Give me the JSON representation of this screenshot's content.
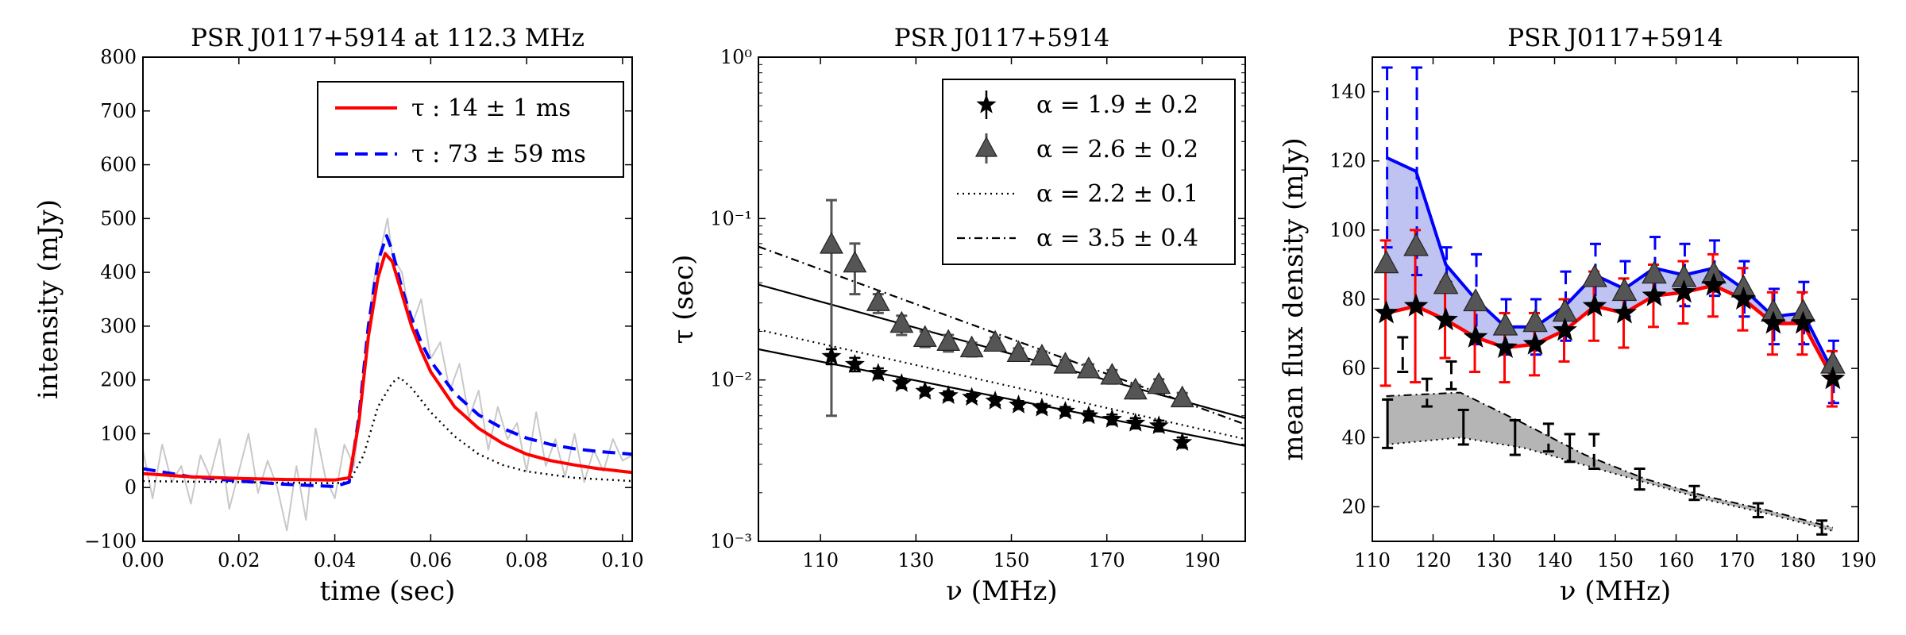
{
  "chart_data": [
    {
      "type": "line",
      "title": "PSR J0117+5914 at 112.3 MHz",
      "xlabel": "time (sec)",
      "ylabel": "intensity (mJy)",
      "xlim": [
        0.0,
        0.102
      ],
      "ylim": [
        -100,
        800
      ],
      "xticks": [
        "0.00",
        "0.02",
        "0.04",
        "0.06",
        "0.08",
        "0.10"
      ],
      "xtick_values": [
        0.0,
        0.02,
        0.04,
        0.06,
        0.08,
        0.1
      ],
      "yticks": [
        "−100",
        "0",
        "100",
        "200",
        "300",
        "400",
        "500",
        "600",
        "700",
        "800"
      ],
      "ytick_values": [
        -100,
        0,
        100,
        200,
        300,
        400,
        500,
        600,
        700,
        800
      ],
      "legend_position": "top-right",
      "legend": [
        {
          "label": "τ : 14 ± 1 ms",
          "color": "#ff0000",
          "style": "solid"
        },
        {
          "label": "τ : 73 ± 59 ms",
          "color": "#0000ff",
          "style": "dashed"
        }
      ],
      "series": [
        {
          "name": "fit tau 14 ms",
          "color": "#ff0000",
          "style": "solid",
          "x": [
            0.0,
            0.01,
            0.02,
            0.03,
            0.04,
            0.043,
            0.045,
            0.047,
            0.049,
            0.0505,
            0.052,
            0.054,
            0.056,
            0.058,
            0.06,
            0.065,
            0.07,
            0.075,
            0.08,
            0.085,
            0.09,
            0.095,
            0.102
          ],
          "y": [
            26,
            20,
            17,
            15,
            14,
            18,
            120,
            280,
            390,
            435,
            420,
            360,
            300,
            255,
            215,
            150,
            110,
            82,
            62,
            50,
            42,
            35,
            28
          ]
        },
        {
          "name": "fit tau 73 ms",
          "color": "#0000ff",
          "style": "dashed",
          "x": [
            0.0,
            0.01,
            0.02,
            0.03,
            0.04,
            0.043,
            0.045,
            0.047,
            0.049,
            0.0508,
            0.052,
            0.054,
            0.056,
            0.058,
            0.06,
            0.065,
            0.07,
            0.075,
            0.08,
            0.085,
            0.09,
            0.095,
            0.102
          ],
          "y": [
            35,
            20,
            12,
            6,
            2,
            10,
            130,
            300,
            420,
            468,
            440,
            370,
            315,
            270,
            235,
            175,
            135,
            110,
            92,
            80,
            72,
            67,
            62
          ]
        },
        {
          "name": "model component",
          "color": "#000000",
          "style": "dotted",
          "x": [
            0.0,
            0.01,
            0.02,
            0.03,
            0.04,
            0.043,
            0.046,
            0.049,
            0.052,
            0.0535,
            0.056,
            0.06,
            0.065,
            0.07,
            0.075,
            0.08,
            0.09,
            0.102
          ],
          "y": [
            12,
            11,
            10,
            9,
            8,
            10,
            60,
            150,
            195,
            205,
            185,
            140,
            95,
            62,
            42,
            30,
            18,
            12
          ]
        },
        {
          "name": "observed profile",
          "color": "#c8c8c8",
          "style": "solid",
          "x": [
            0.0,
            0.002,
            0.004,
            0.006,
            0.008,
            0.01,
            0.012,
            0.014,
            0.016,
            0.018,
            0.02,
            0.022,
            0.024,
            0.026,
            0.028,
            0.03,
            0.032,
            0.034,
            0.036,
            0.038,
            0.04,
            0.042,
            0.044,
            0.046,
            0.048,
            0.05,
            0.051,
            0.052,
            0.054,
            0.056,
            0.058,
            0.06,
            0.062,
            0.064,
            0.066,
            0.068,
            0.07,
            0.072,
            0.074,
            0.076,
            0.078,
            0.08,
            0.082,
            0.084,
            0.086,
            0.088,
            0.09,
            0.092,
            0.094,
            0.096,
            0.098,
            0.1,
            0.102
          ],
          "y": [
            70,
            -20,
            80,
            10,
            40,
            -30,
            60,
            20,
            90,
            -40,
            30,
            100,
            -10,
            50,
            0,
            -80,
            40,
            -60,
            110,
            20,
            -20,
            80,
            40,
            200,
            380,
            460,
            500,
            430,
            400,
            300,
            350,
            240,
            270,
            180,
            230,
            130,
            180,
            70,
            150,
            90,
            120,
            30,
            140,
            40,
            90,
            20,
            100,
            10,
            70,
            30,
            90,
            50,
            60
          ]
        }
      ]
    },
    {
      "type": "scatter",
      "title": "PSR J0117+5914",
      "xlabel": "ν (MHz)",
      "ylabel": "τ (sec)",
      "yscale": "log",
      "xlim": [
        97,
        199
      ],
      "ylim": [
        0.001,
        1
      ],
      "xticks": [
        "110",
        "130",
        "150",
        "170",
        "190"
      ],
      "xtick_values": [
        110,
        130,
        150,
        170,
        190
      ],
      "yticks": [
        "10⁻³",
        "10⁻²",
        "10⁻¹",
        "10⁰"
      ],
      "ytick_values": [
        0.001,
        0.01,
        0.1,
        1
      ],
      "legend_position": "top-right",
      "legend": [
        {
          "label": "α = 1.9 ± 0.2",
          "marker": "star"
        },
        {
          "label": "α = 2.6 ± 0.2",
          "marker": "triangle"
        },
        {
          "label": "α = 2.2 ± 0.1",
          "style": "dotted"
        },
        {
          "label": "α = 3.5 ± 0.4",
          "style": "dashdot"
        }
      ],
      "series": [
        {
          "name": "stars (alpha 1.9)",
          "marker": "star",
          "color": "#000000",
          "x": [
            112.3,
            117.2,
            122.1,
            127.0,
            131.9,
            136.8,
            141.7,
            146.6,
            151.5,
            156.4,
            161.3,
            166.2,
            171.1,
            176.0,
            180.9,
            185.8
          ],
          "y": [
            0.014,
            0.0125,
            0.011,
            0.0095,
            0.0085,
            0.008,
            0.0078,
            0.0074,
            0.007,
            0.0067,
            0.0064,
            0.006,
            0.0057,
            0.0054,
            0.0052,
            0.0041
          ],
          "yerr": [
            0.0015,
            0.0012,
            0.0008,
            0.0006,
            0.0005,
            0.0005,
            0.0004,
            0.0004,
            0.0004,
            0.0004,
            0.0004,
            0.0004,
            0.0004,
            0.0004,
            0.0004,
            0.0003
          ]
        },
        {
          "name": "triangles (alpha 2.6)",
          "marker": "triangle",
          "color": "#555555",
          "x": [
            112.3,
            117.2,
            122.1,
            127.0,
            131.9,
            136.8,
            141.7,
            146.6,
            151.5,
            156.4,
            161.3,
            166.2,
            171.1,
            176.0,
            180.9,
            185.8
          ],
          "y": [
            0.068,
            0.052,
            0.03,
            0.022,
            0.018,
            0.017,
            0.0155,
            0.0168,
            0.0145,
            0.0138,
            0.0123,
            0.0115,
            0.0105,
            0.0085,
            0.0092,
            0.0076
          ],
          "yerr": [
            0.062,
            0.018,
            0.004,
            0.003,
            0.002,
            0.002,
            0.0015,
            0.0015,
            0.0012,
            0.0012,
            0.001,
            0.001,
            0.001,
            0.0008,
            0.0009,
            0.0007
          ]
        },
        {
          "name": "fit alpha 1.9",
          "style": "solid",
          "x": [
            97,
            199
          ],
          "y": [
            0.0155,
            0.0039
          ]
        },
        {
          "name": "fit alpha 2.6",
          "style": "solid",
          "x": [
            97,
            199
          ],
          "y": [
            0.039,
            0.0058
          ]
        },
        {
          "name": "fit alpha 2.2",
          "style": "dotted",
          "x": [
            97,
            199
          ],
          "y": [
            0.0205,
            0.0043
          ]
        },
        {
          "name": "fit alpha 3.5",
          "style": "dashdot",
          "x": [
            97,
            199
          ],
          "y": [
            0.067,
            0.0053
          ]
        }
      ]
    },
    {
      "type": "line",
      "title": "PSR J0117+5914",
      "xlabel": "ν (MHz)",
      "ylabel": "mean flux density (mJy)",
      "xlim": [
        110,
        190
      ],
      "ylim": [
        10,
        150
      ],
      "xticks": [
        "110",
        "120",
        "130",
        "140",
        "150",
        "160",
        "170",
        "180",
        "190"
      ],
      "xtick_values": [
        110,
        120,
        130,
        140,
        150,
        160,
        170,
        180,
        190
      ],
      "yticks": [
        "20",
        "40",
        "60",
        "80",
        "100",
        "120",
        "140"
      ],
      "ytick_values": [
        20,
        40,
        60,
        80,
        100,
        120,
        140
      ],
      "x": [
        112.3,
        117.2,
        122.1,
        127.0,
        131.9,
        136.8,
        141.7,
        146.6,
        151.5,
        156.4,
        161.3,
        166.2,
        171.1,
        176.0,
        180.9,
        185.8
      ],
      "series": [
        {
          "name": "upper envelope (blue)",
          "color": "#0000ff",
          "style": "solid",
          "y": [
            121,
            117,
            90,
            80,
            72,
            72,
            78,
            87,
            83,
            89,
            87,
            89,
            83,
            75,
            76,
            59
          ],
          "err_style": "dashed",
          "yerr": [
            26,
            30,
            5,
            13,
            8,
            8,
            10,
            9,
            8,
            9,
            9,
            8,
            8,
            8,
            9,
            9
          ]
        },
        {
          "name": "lower envelope (red)",
          "color": "#ff0000",
          "style": "solid",
          "y": [
            76,
            78,
            74,
            69,
            66,
            67,
            71,
            78,
            76,
            81,
            82,
            84,
            80,
            73,
            73,
            57
          ],
          "err_style": "solid",
          "yerr": [
            21,
            22,
            11,
            10,
            10,
            9,
            9,
            10,
            10,
            9,
            9,
            9,
            9,
            9,
            9,
            8
          ]
        },
        {
          "name": "stars",
          "marker": "star",
          "color": "#000000",
          "y": [
            76,
            78,
            74,
            69,
            66,
            67,
            71,
            78,
            76,
            81,
            82,
            84,
            80,
            73,
            73,
            57
          ]
        },
        {
          "name": "triangles",
          "marker": "triangle",
          "color": "#555555",
          "y": [
            90,
            95,
            84,
            79,
            72,
            73,
            76,
            86,
            82,
            87,
            86,
            87,
            83,
            76,
            76,
            61
          ]
        }
      ],
      "lower_series": {
        "upper_line": {
          "x": [
            112.3,
            124.5,
            135.0,
            145.0,
            155.0,
            165.0,
            175.0,
            185.8
          ],
          "y": [
            52,
            53,
            44,
            35,
            28,
            23,
            19,
            14
          ]
        },
        "lower_line": {
          "x": [
            112.3,
            124.5,
            135.0,
            145.0,
            155.0,
            165.0,
            175.0,
            185.8
          ],
          "y": [
            38,
            40,
            37,
            32,
            27,
            22,
            18,
            13
          ]
        },
        "points": {
          "x": [
            112.5,
            115.0,
            119.0,
            123.0,
            125.0,
            133.5,
            139.0,
            142.5,
            146.5,
            154.0,
            163.0,
            173.5,
            184.0
          ],
          "y": [
            44,
            64,
            53,
            58,
            43,
            40,
            40,
            37,
            36,
            28,
            24,
            19,
            14
          ],
          "yerr": [
            7,
            5,
            4,
            4,
            5,
            5,
            4,
            4,
            5,
            3,
            2,
            2,
            2
          ],
          "style": [
            "solid",
            "dashed",
            "dashed",
            "dashed",
            "solid",
            "solid",
            "dashed",
            "solid",
            "dashed",
            "solid",
            "solid",
            "solid",
            "solid"
          ]
        }
      }
    }
  ]
}
